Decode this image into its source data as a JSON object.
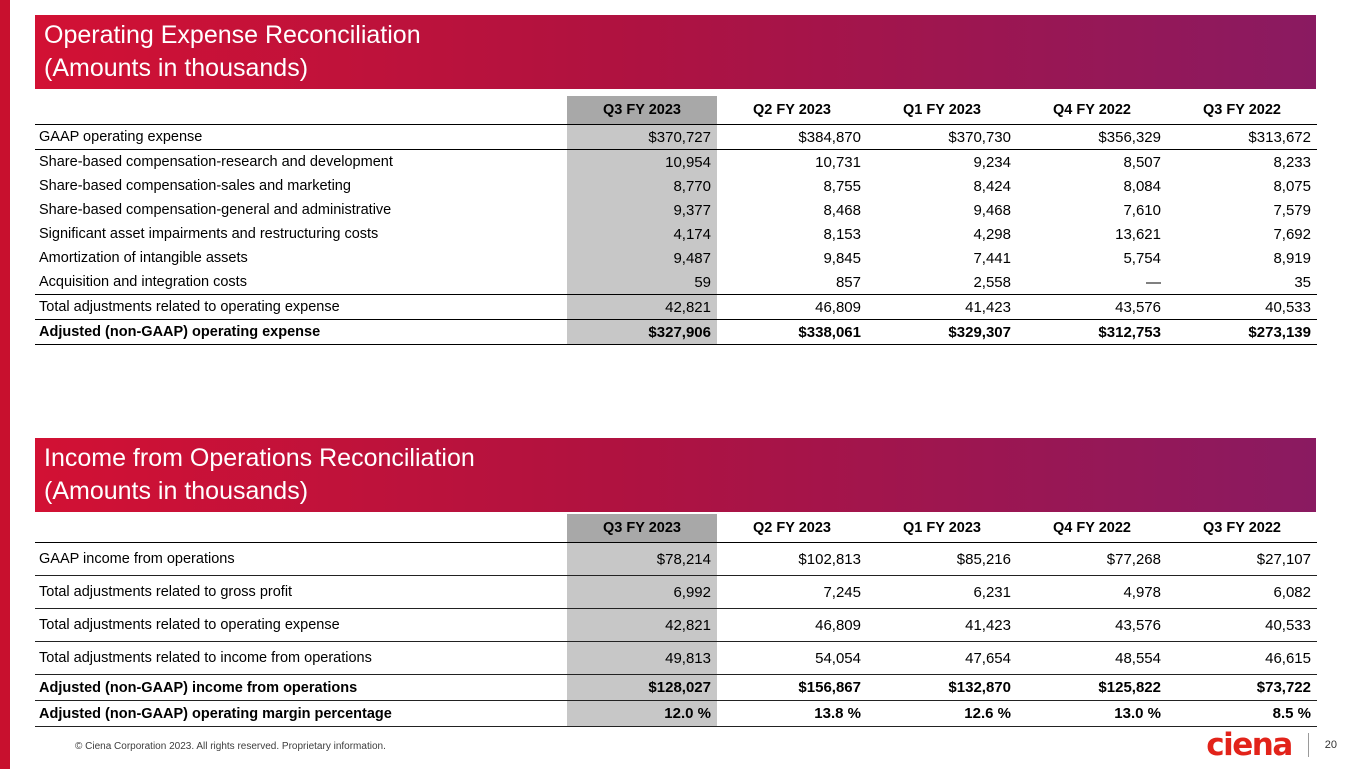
{
  "page": {
    "footer_text": "© Ciena Corporation 2023. All rights reserved. Proprietary information.",
    "logo_text": "ciena",
    "page_number": "20"
  },
  "colors": {
    "banner_gradient_start": "#d21134",
    "banner_gradient_end": "#8a1a61",
    "accent_bar": "#c8102e",
    "highlight_header_gray": "#a8a8a8",
    "highlight_cell_gray": "#c7c7c7",
    "logo_red": "#e2231a"
  },
  "tables": [
    {
      "title_line1": "Operating Expense Reconciliation",
      "title_line2": "(Amounts in thousands)",
      "columns": [
        "Q3 FY 2023",
        "Q2 FY 2023",
        "Q1 FY 2023",
        "Q4 FY 2022",
        "Q3 FY 2022"
      ],
      "rows": [
        {
          "label": "GAAP operating expense",
          "values": [
            "$370,727",
            "$384,870",
            "$370,730",
            "$356,329",
            "$313,672"
          ]
        },
        {
          "label": "Share-based compensation-research and development",
          "values": [
            "10,954",
            "10,731",
            "9,234",
            "8,507",
            "8,233"
          ]
        },
        {
          "label": "Share-based compensation-sales and marketing",
          "values": [
            "8,770",
            "8,755",
            "8,424",
            "8,084",
            "8,075"
          ]
        },
        {
          "label": "Share-based compensation-general and administrative",
          "values": [
            "9,377",
            "8,468",
            "9,468",
            "7,610",
            "7,579"
          ]
        },
        {
          "label": "Significant asset impairments and restructuring costs",
          "values": [
            "4,174",
            "8,153",
            "4,298",
            "13,621",
            "7,692"
          ]
        },
        {
          "label": "Amortization of intangible assets",
          "values": [
            "9,487",
            "9,845",
            "7,441",
            "5,754",
            "8,919"
          ]
        },
        {
          "label": "Acquisition and integration costs",
          "values": [
            "59",
            "857",
            "2,558",
            "—",
            "35"
          ]
        },
        {
          "label": "Total adjustments related to operating expense",
          "values": [
            "42,821",
            "46,809",
            "41,423",
            "43,576",
            "40,533"
          ]
        },
        {
          "label": "Adjusted (non-GAAP) operating expense",
          "values": [
            "$327,906",
            "$338,061",
            "$329,307",
            "$312,753",
            "$273,139"
          ]
        }
      ]
    },
    {
      "title_line1": "Income from Operations Reconciliation",
      "title_line2": "(Amounts in thousands)",
      "columns": [
        "Q3 FY 2023",
        "Q2 FY 2023",
        "Q1 FY 2023",
        "Q4 FY 2022",
        "Q3 FY 2022"
      ],
      "rows": [
        {
          "label": "GAAP income from operations",
          "values": [
            "$78,214",
            "$102,813",
            "$85,216",
            "$77,268",
            "$27,107"
          ]
        },
        {
          "label": "Total adjustments related to gross profit",
          "values": [
            "6,992",
            "7,245",
            "6,231",
            "4,978",
            "6,082"
          ]
        },
        {
          "label": "Total adjustments related to operating expense",
          "values": [
            "42,821",
            "46,809",
            "41,423",
            "43,576",
            "40,533"
          ]
        },
        {
          "label": "Total adjustments related to income from operations",
          "values": [
            "49,813",
            "54,054",
            "47,654",
            "48,554",
            "46,615"
          ]
        },
        {
          "label": "Adjusted (non-GAAP) income from operations",
          "values": [
            "$128,027",
            "$156,867",
            "$132,870",
            "$125,822",
            "$73,722"
          ]
        },
        {
          "label": "Adjusted (non-GAAP) operating margin percentage",
          "values": [
            "12.0 %",
            "13.8 %",
            "12.6 %",
            "13.0 %",
            "8.5 %"
          ]
        }
      ]
    }
  ]
}
